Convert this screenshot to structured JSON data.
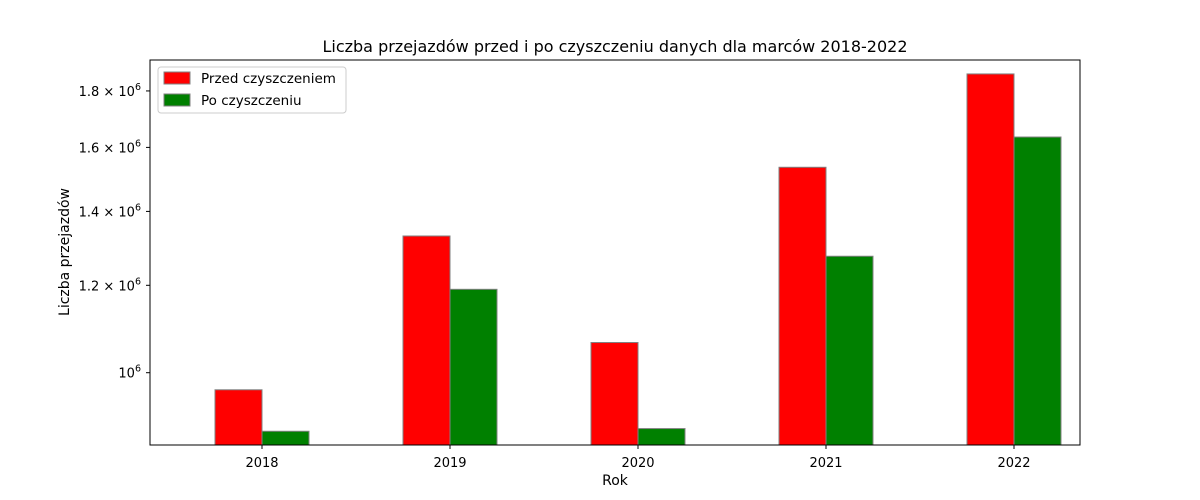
{
  "chart_data": {
    "type": "bar",
    "title": "Liczba przejazdów przed i po czyszczeniu danych dla marców 2018-2022",
    "xlabel": "Rok",
    "ylabel": "Liczba przejazdów",
    "categories": [
      "2018",
      "2019",
      "2020",
      "2021",
      "2022"
    ],
    "series": [
      {
        "name": "Przed czyszczeniem",
        "color": "#ff0000",
        "values": [
          965000,
          1330000,
          1065000,
          1535000,
          1865000
        ]
      },
      {
        "name": "Po czyszczeniu",
        "color": "#008000",
        "values": [
          885000,
          1190000,
          890000,
          1275000,
          1635000
        ]
      }
    ],
    "yscale": "log",
    "ylim": [
      860000,
      1920000
    ],
    "yticks": [
      {
        "value": 1000000,
        "mantissa": "",
        "base": "10",
        "exp": "6"
      },
      {
        "value": 1200000,
        "mantissa": "1.2 × ",
        "base": "10",
        "exp": "6"
      },
      {
        "value": 1400000,
        "mantissa": "1.4 × ",
        "base": "10",
        "exp": "6"
      },
      {
        "value": 1600000,
        "mantissa": "1.6 × ",
        "base": "10",
        "exp": "6"
      },
      {
        "value": 1800000,
        "mantissa": "1.8 × ",
        "base": "10",
        "exp": "6"
      }
    ],
    "grid": false,
    "legend_position": "top-left"
  }
}
